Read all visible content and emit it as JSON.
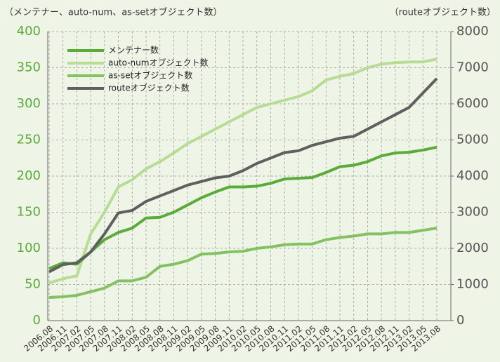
{
  "chart_data": {
    "type": "line",
    "y_title": "（メンテナー、auto-num、as-setオブジェクト数）",
    "y2_title": "（routeオブジェクト数）",
    "categories": [
      "2006.08",
      "2006.11",
      "2007.02",
      "2007.05",
      "2007.08",
      "2007.11",
      "2008.02",
      "2008.05",
      "2008.08",
      "2008.11",
      "2009.02",
      "2009.05",
      "2009.08",
      "2009.11",
      "2010.02",
      "2010.05",
      "2010.08",
      "2010.11",
      "2011.02",
      "2011.05",
      "2011.08",
      "2011.11",
      "2012.02",
      "2012.05",
      "2012.08",
      "2012.11",
      "2013.02",
      "2013.05",
      "2013.08"
    ],
    "series": [
      {
        "name": "メンテナー数",
        "color": "#5aab3a",
        "axis": "y",
        "values": [
          72,
          80,
          78,
          95,
          112,
          122,
          128,
          142,
          143,
          150,
          160,
          170,
          178,
          185,
          185,
          186,
          190,
          196,
          197,
          198,
          205,
          213,
          215,
          220,
          228,
          232,
          233,
          236,
          240
        ]
      },
      {
        "name": "auto-numオブジェクト数",
        "color": "#b8dc94",
        "axis": "y",
        "values": [
          52,
          58,
          62,
          120,
          150,
          185,
          195,
          210,
          220,
          232,
          245,
          255,
          265,
          275,
          285,
          295,
          300,
          305,
          310,
          318,
          333,
          338,
          342,
          350,
          355,
          357,
          358,
          358,
          362
        ]
      },
      {
        "name": "as-setオブジェクト数",
        "color": "#84c160",
        "axis": "y",
        "values": [
          32,
          33,
          35,
          40,
          45,
          55,
          55,
          60,
          75,
          78,
          83,
          92,
          93,
          95,
          96,
          100,
          102,
          105,
          106,
          106,
          112,
          115,
          117,
          120,
          120,
          122,
          122,
          125,
          128
        ]
      },
      {
        "name": "routeオブジェクト数",
        "color": "#5f5f5f",
        "axis": "y2",
        "values": [
          1350,
          1550,
          1600,
          1900,
          2400,
          2980,
          3050,
          3300,
          3450,
          3600,
          3750,
          3850,
          3950,
          4000,
          4150,
          4350,
          4500,
          4650,
          4700,
          4850,
          4950,
          5050,
          5100,
          5300,
          5500,
          5700,
          5900,
          6300,
          6700
        ]
      }
    ],
    "ylim": [
      0,
      400
    ],
    "yticks": [
      0,
      50,
      100,
      150,
      200,
      250,
      300,
      350,
      400
    ],
    "y2lim": [
      0,
      8000
    ],
    "y2ticks": [
      0,
      1000,
      2000,
      3000,
      4000,
      5000,
      6000,
      7000,
      8000
    ],
    "grid": true,
    "legend": "upper left"
  }
}
